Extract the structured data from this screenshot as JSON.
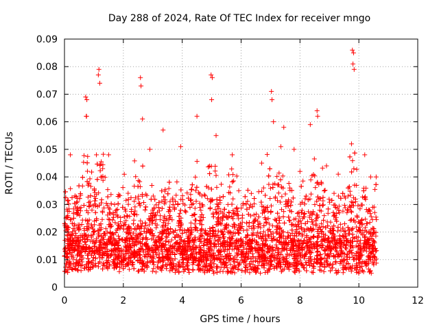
{
  "chart_data": {
    "type": "scatter",
    "title": "Day 288 of 2024, Rate Of TEC Index for receiver mngo",
    "xlabel": "GPS time / hours",
    "ylabel": "ROTI / TECUs",
    "xlim": [
      0,
      12
    ],
    "ylim": [
      0,
      0.09
    ],
    "xticks": [
      "0",
      "2",
      "4",
      "6",
      "8",
      "10",
      "12"
    ],
    "yticks": [
      "0",
      "0.01",
      "0.02",
      "0.03",
      "0.04",
      "0.05",
      "0.06",
      "0.07",
      "0.08",
      "0.09"
    ],
    "grid": true,
    "marker": "+",
    "series_color": "#ff0000",
    "data_x_range": [
      0,
      10.6
    ],
    "points": [
      {
        "x": 1.17,
        "y": 0.079
      },
      {
        "x": 1.15,
        "y": 0.077
      },
      {
        "x": 1.2,
        "y": 0.074
      },
      {
        "x": 0.72,
        "y": 0.069
      },
      {
        "x": 0.76,
        "y": 0.068
      },
      {
        "x": 0.74,
        "y": 0.062
      },
      {
        "x": 2.58,
        "y": 0.076
      },
      {
        "x": 2.6,
        "y": 0.073
      },
      {
        "x": 4.98,
        "y": 0.077
      },
      {
        "x": 5.02,
        "y": 0.076
      },
      {
        "x": 5.0,
        "y": 0.068
      },
      {
        "x": 7.03,
        "y": 0.071
      },
      {
        "x": 7.05,
        "y": 0.068
      },
      {
        "x": 9.78,
        "y": 0.086
      },
      {
        "x": 9.82,
        "y": 0.085
      },
      {
        "x": 9.8,
        "y": 0.081
      },
      {
        "x": 9.84,
        "y": 0.079
      },
      {
        "x": 8.58,
        "y": 0.064
      },
      {
        "x": 8.6,
        "y": 0.062
      },
      {
        "x": 8.35,
        "y": 0.059
      },
      {
        "x": 4.5,
        "y": 0.062
      },
      {
        "x": 2.65,
        "y": 0.061
      },
      {
        "x": 3.35,
        "y": 0.057
      },
      {
        "x": 7.1,
        "y": 0.06
      },
      {
        "x": 7.45,
        "y": 0.058
      },
      {
        "x": 5.15,
        "y": 0.055
      },
      {
        "x": 0.2,
        "y": 0.048
      },
      {
        "x": 1.5,
        "y": 0.048
      },
      {
        "x": 2.9,
        "y": 0.05
      },
      {
        "x": 3.95,
        "y": 0.051
      },
      {
        "x": 5.7,
        "y": 0.048
      },
      {
        "x": 7.35,
        "y": 0.051
      },
      {
        "x": 7.8,
        "y": 0.05
      },
      {
        "x": 9.75,
        "y": 0.052
      },
      {
        "x": 10.2,
        "y": 0.048
      },
      {
        "x": 6.7,
        "y": 0.045
      },
      {
        "x": 8.0,
        "y": 0.042
      },
      {
        "x": 8.9,
        "y": 0.044
      },
      {
        "x": 9.3,
        "y": 0.041
      },
      {
        "x": 10.4,
        "y": 0.04
      }
    ]
  }
}
